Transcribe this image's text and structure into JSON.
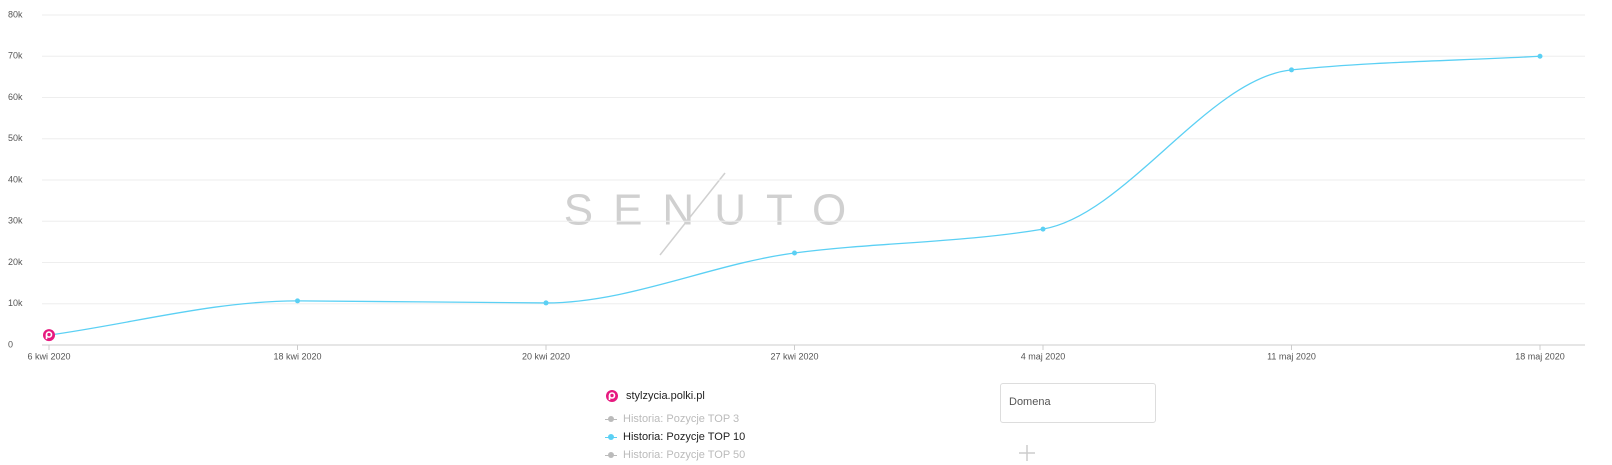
{
  "chart_data": {
    "type": "line",
    "watermark": "SENUTO",
    "categories": [
      "6 kwi 2020",
      "18 kwi 2020",
      "20 kwi 2020",
      "27 kwi 2020",
      "4 maj 2020",
      "11 maj 2020",
      "18 maj 2020"
    ],
    "series": [
      {
        "name": "Historia: Pozycje TOP 10",
        "color": "#5bd0f4",
        "values": [
          2400,
          10700,
          10200,
          22300,
          28100,
          66700,
          70000
        ]
      }
    ],
    "hidden_series": [
      {
        "name": "Historia: Pozycje TOP 3",
        "color": "#bbbbbb"
      },
      {
        "name": "Historia: Pozycje TOP 50",
        "color": "#bbbbbb"
      }
    ],
    "ylim": [
      0,
      80000
    ],
    "yticks": [
      0,
      {
        "value": 10000,
        "label": "10k"
      },
      {
        "value": 20000,
        "label": "20k"
      },
      {
        "value": 30000,
        "label": "30k"
      },
      {
        "value": 40000,
        "label": "40k"
      },
      {
        "value": 50000,
        "label": "50k"
      },
      {
        "value": 60000,
        "label": "60k"
      },
      {
        "value": 70000,
        "label": "70k"
      },
      {
        "value": 80000,
        "label": "80k"
      }
    ],
    "grid": true,
    "domain": "stylzycia.polki.pl",
    "domain_color": "#e6197f",
    "input_placeholder": "Domena"
  }
}
